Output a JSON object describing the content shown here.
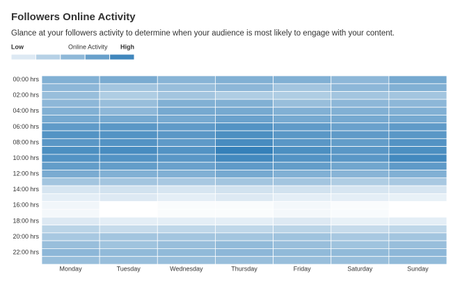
{
  "chart_data": {
    "type": "heatmap",
    "title": "Followers Online Activity",
    "subtitle": "Glance at your followers activity to determine when your audience is most likely to engage with your content.",
    "legend": {
      "low": "Low",
      "title": "Online Activity",
      "high": "High"
    },
    "colorscale": [
      "#ffffff",
      "#1a6fb0"
    ],
    "zlim": [
      0,
      100
    ],
    "x": [
      "Monday",
      "Tuesday",
      "Wednesday",
      "Thursday",
      "Friday",
      "Saturday",
      "Sunday"
    ],
    "y": [
      "00:00 hrs",
      null,
      "02:00 hrs",
      null,
      "04:00 hrs",
      null,
      "06:00 hrs",
      null,
      "08:00 hrs",
      null,
      "10:00 hrs",
      null,
      "12:00 hrs",
      null,
      "14:00 hrs",
      null,
      "16:00 hrs",
      null,
      "18:00 hrs",
      null,
      "20:00 hrs",
      null,
      "22:00 hrs",
      null
    ],
    "z": [
      [
        55,
        58,
        52,
        55,
        55,
        50,
        60
      ],
      [
        50,
        40,
        45,
        50,
        40,
        50,
        55
      ],
      [
        45,
        35,
        40,
        35,
        35,
        40,
        40
      ],
      [
        50,
        45,
        55,
        55,
        45,
        50,
        50
      ],
      [
        55,
        50,
        60,
        60,
        55,
        55,
        55
      ],
      [
        60,
        60,
        60,
        65,
        60,
        60,
        60
      ],
      [
        70,
        72,
        70,
        75,
        70,
        65,
        70
      ],
      [
        75,
        75,
        72,
        78,
        72,
        70,
        72
      ],
      [
        72,
        75,
        70,
        80,
        72,
        68,
        75
      ],
      [
        78,
        80,
        75,
        88,
        78,
        72,
        78
      ],
      [
        75,
        75,
        72,
        82,
        75,
        72,
        82
      ],
      [
        68,
        68,
        65,
        70,
        68,
        62,
        70
      ],
      [
        58,
        55,
        55,
        60,
        55,
        52,
        55
      ],
      [
        40,
        40,
        38,
        40,
        40,
        35,
        38
      ],
      [
        18,
        20,
        18,
        20,
        20,
        18,
        18
      ],
      [
        12,
        15,
        12,
        15,
        12,
        12,
        10
      ],
      [
        6,
        0,
        2,
        2,
        5,
        2,
        0
      ],
      [
        5,
        0,
        2,
        2,
        5,
        3,
        0
      ],
      [
        15,
        12,
        12,
        12,
        15,
        10,
        12
      ],
      [
        30,
        25,
        28,
        28,
        30,
        25,
        28
      ],
      [
        38,
        40,
        40,
        40,
        42,
        38,
        40
      ],
      [
        45,
        42,
        45,
        48,
        45,
        42,
        45
      ],
      [
        50,
        48,
        48,
        50,
        48,
        48,
        50
      ],
      [
        45,
        45,
        45,
        45,
        45,
        45,
        48
      ]
    ]
  }
}
